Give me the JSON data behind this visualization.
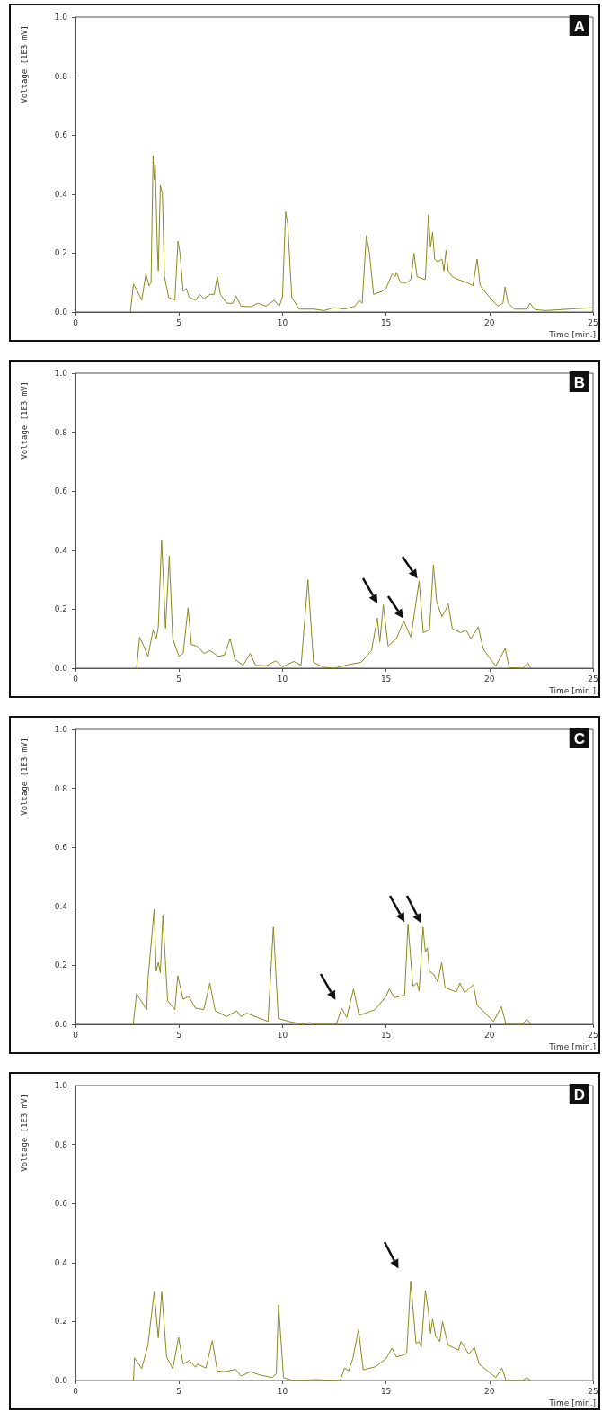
{
  "chart_data": [
    {
      "type": "line",
      "title": "A",
      "xlabel": "Time [min.]",
      "ylabel": "Voltage [1E3 mV]",
      "color": "#8a8a1e",
      "marker": "none",
      "xlim": [
        0,
        25
      ],
      "ylim": [
        0,
        1
      ],
      "xticks": [
        0,
        5,
        10,
        15,
        20,
        25
      ],
      "yticks": [
        {
          "value": 0,
          "label": "0.0"
        },
        {
          "value": 0.2,
          "label": "0.2"
        },
        {
          "value": 0.4,
          "label": "0.4"
        },
        {
          "value": 0.6,
          "label": "0.6"
        },
        {
          "value": 0.8,
          "label": "0.8"
        },
        {
          "value": 1,
          "label": "1.0"
        }
      ],
      "x": [
        2.65,
        2.8,
        3.0,
        3.2,
        3.4,
        3.55,
        3.65,
        3.75,
        3.8,
        3.85,
        3.95,
        4.0,
        4.1,
        4.2,
        4.3,
        4.5,
        4.8,
        4.95,
        5.05,
        5.2,
        5.35,
        5.5,
        5.8,
        6.0,
        6.2,
        6.5,
        6.7,
        6.85,
        7.0,
        7.3,
        7.6,
        7.75,
        8.0,
        8.5,
        8.8,
        9.2,
        9.6,
        9.85,
        10.0,
        10.15,
        10.25,
        10.45,
        10.8,
        11.5,
        12.0,
        12.5,
        13.0,
        13.5,
        13.7,
        13.85,
        14.05,
        14.2,
        14.4,
        14.8,
        15.0,
        15.3,
        15.45,
        15.5,
        15.7,
        16.0,
        16.2,
        16.35,
        16.5,
        16.9,
        17.05,
        17.15,
        17.25,
        17.35,
        17.5,
        17.7,
        17.8,
        17.9,
        18.0,
        18.2,
        18.5,
        18.9,
        19.2,
        19.4,
        19.55,
        20.0,
        20.4,
        20.65,
        20.75,
        20.9,
        21.2,
        21.8,
        21.95,
        22.2,
        22.7,
        25
      ],
      "values": [
        0,
        0.095,
        0.07,
        0.04,
        0.13,
        0.09,
        0.1,
        0.53,
        0.45,
        0.5,
        0.23,
        0.14,
        0.43,
        0.4,
        0.12,
        0.05,
        0.04,
        0.24,
        0.2,
        0.07,
        0.08,
        0.05,
        0.04,
        0.06,
        0.045,
        0.06,
        0.06,
        0.12,
        0.06,
        0.03,
        0.03,
        0.055,
        0.02,
        0.018,
        0.03,
        0.02,
        0.04,
        0.02,
        0.05,
        0.34,
        0.3,
        0.05,
        0.01,
        0.01,
        0.005,
        0.015,
        0.01,
        0.02,
        0.04,
        0.03,
        0.26,
        0.2,
        0.06,
        0.07,
        0.08,
        0.13,
        0.12,
        0.135,
        0.1,
        0.1,
        0.11,
        0.2,
        0.12,
        0.11,
        0.33,
        0.22,
        0.27,
        0.18,
        0.17,
        0.18,
        0.14,
        0.21,
        0.14,
        0.12,
        0.11,
        0.1,
        0.09,
        0.18,
        0.09,
        0.05,
        0.02,
        0.03,
        0.085,
        0.03,
        0.01,
        0.01,
        0.03,
        0.008,
        0.005,
        0.015
      ]
    },
    {
      "type": "line",
      "title": "B",
      "xlabel": "Time [min.]",
      "ylabel": "Voltage [1E3 mV]",
      "color": "#8a8a1e",
      "marker": "none",
      "xlim": [
        0,
        25
      ],
      "ylim": [
        0,
        1
      ],
      "xticks": [
        0,
        5,
        10,
        15,
        20,
        25
      ],
      "yticks": [
        {
          "value": 0,
          "label": "0.0"
        },
        {
          "value": 0.2,
          "label": "0.2"
        },
        {
          "value": 0.4,
          "label": "0.4"
        },
        {
          "value": 0.6,
          "label": "0.6"
        },
        {
          "value": 0.8,
          "label": "0.8"
        },
        {
          "value": 1,
          "label": "1.0"
        }
      ],
      "x": [
        2.95,
        3.1,
        3.3,
        3.5,
        3.75,
        3.9,
        4.0,
        4.16,
        4.35,
        4.53,
        4.7,
        5.0,
        5.2,
        5.44,
        5.6,
        5.88,
        6.2,
        6.5,
        6.9,
        7.2,
        7.47,
        7.7,
        8.1,
        8.44,
        8.7,
        9.2,
        9.68,
        10.0,
        10.55,
        10.9,
        11.23,
        11.5,
        12.0,
        12.5,
        13.18,
        13.8,
        14.3,
        14.58,
        14.7,
        14.87,
        15.1,
        15.5,
        15.86,
        16.2,
        16.6,
        16.8,
        17.1,
        17.29,
        17.45,
        17.7,
        17.9,
        18.0,
        18.2,
        18.6,
        18.86,
        19.1,
        19.46,
        19.7,
        20.3,
        20.76,
        20.95,
        21.6,
        21.85,
        22.0
      ],
      "values": [
        0,
        0.105,
        0.075,
        0.04,
        0.13,
        0.1,
        0.14,
        0.435,
        0.135,
        0.38,
        0.1,
        0.04,
        0.05,
        0.205,
        0.08,
        0.075,
        0.05,
        0.06,
        0.04,
        0.045,
        0.1,
        0.03,
        0.01,
        0.05,
        0.01,
        0.008,
        0.025,
        0.005,
        0.023,
        0.01,
        0.3,
        0.02,
        0.003,
        0,
        0.012,
        0.02,
        0.06,
        0.17,
        0.09,
        0.215,
        0.075,
        0.1,
        0.16,
        0.105,
        0.295,
        0.12,
        0.13,
        0.35,
        0.225,
        0.175,
        0.2,
        0.22,
        0.135,
        0.12,
        0.13,
        0.1,
        0.14,
        0.065,
        0.007,
        0.067,
        0.002,
        0,
        0.018,
        0
      ]
    },
    {
      "type": "line",
      "title": "C",
      "xlabel": "Time [min.]",
      "ylabel": "Voltage [1E3 mV]",
      "color": "#8a8a1e",
      "marker": "none",
      "xlim": [
        0,
        25
      ],
      "ylim": [
        0,
        1
      ],
      "xticks": [
        0,
        5,
        10,
        15,
        20,
        25
      ],
      "yticks": [
        {
          "value": 0,
          "label": "0.0"
        },
        {
          "value": 0.2,
          "label": "0.2"
        },
        {
          "value": 0.4,
          "label": "0.4"
        },
        {
          "value": 0.6,
          "label": "0.6"
        },
        {
          "value": 0.8,
          "label": "0.8"
        },
        {
          "value": 1,
          "label": "1.0"
        }
      ],
      "x": [
        2.79,
        2.95,
        3.1,
        3.44,
        3.5,
        3.8,
        3.9,
        4.0,
        4.1,
        4.22,
        4.45,
        4.8,
        4.94,
        5.2,
        5.47,
        5.8,
        6.2,
        6.49,
        6.75,
        7.3,
        7.78,
        8.0,
        8.28,
        8.8,
        9.3,
        9.56,
        9.8,
        10.3,
        11.0,
        11.3,
        11.7,
        12.6,
        12.86,
        13.1,
        13.43,
        13.7,
        14.48,
        15.0,
        15.16,
        15.4,
        15.9,
        16.06,
        16.3,
        16.5,
        16.6,
        16.79,
        16.9,
        17.0,
        17.1,
        17.3,
        17.5,
        17.69,
        17.85,
        18.4,
        18.57,
        18.8,
        19.22,
        19.4,
        20.2,
        20.57,
        20.8,
        21.6,
        21.8,
        22.0
      ],
      "values": [
        0,
        0.105,
        0.087,
        0.05,
        0.15,
        0.39,
        0.18,
        0.21,
        0.175,
        0.37,
        0.08,
        0.05,
        0.165,
        0.085,
        0.095,
        0.055,
        0.05,
        0.14,
        0.046,
        0.026,
        0.046,
        0.026,
        0.038,
        0.023,
        0.01,
        0.33,
        0.02,
        0.01,
        0,
        0.006,
        0,
        0,
        0.055,
        0.023,
        0.12,
        0.03,
        0.05,
        0.095,
        0.12,
        0.09,
        0.1,
        0.34,
        0.13,
        0.14,
        0.113,
        0.33,
        0.245,
        0.26,
        0.18,
        0.17,
        0.145,
        0.21,
        0.125,
        0.11,
        0.14,
        0.107,
        0.135,
        0.065,
        0.01,
        0.06,
        0,
        0,
        0.018,
        0
      ]
    },
    {
      "type": "line",
      "title": "D",
      "xlabel": "Time [min.]",
      "ylabel": "Voltage [1E3 mV]",
      "color": "#8a8a1e",
      "marker": "none",
      "xlim": [
        0,
        25
      ],
      "ylim": [
        0,
        1
      ],
      "xticks": [
        0,
        5,
        10,
        15,
        20,
        25
      ],
      "yticks": [
        {
          "value": 0,
          "label": "0.0"
        },
        {
          "value": 0.2,
          "label": "0.2"
        },
        {
          "value": 0.4,
          "label": "0.4"
        },
        {
          "value": 0.6,
          "label": "0.6"
        },
        {
          "value": 0.8,
          "label": "0.8"
        },
        {
          "value": 1,
          "label": "1.0"
        }
      ],
      "x": [
        2.8,
        2.85,
        3.2,
        3.5,
        3.8,
        4.0,
        4.17,
        4.4,
        4.7,
        4.98,
        5.2,
        5.5,
        5.8,
        5.9,
        6.3,
        6.61,
        6.85,
        7.2,
        7.74,
        8.0,
        8.45,
        8.9,
        9.5,
        9.7,
        9.81,
        10.05,
        10.5,
        11.6,
        12.78,
        13.0,
        13.2,
        13.4,
        13.67,
        13.9,
        14.5,
        15.0,
        15.29,
        15.5,
        16.0,
        16.19,
        16.45,
        16.6,
        16.7,
        16.9,
        17.05,
        17.15,
        17.25,
        17.4,
        17.6,
        17.73,
        18.0,
        18.5,
        18.62,
        19.0,
        19.27,
        19.5,
        20.3,
        20.6,
        20.8,
        21.6,
        21.8,
        22.0
      ],
      "values": [
        0,
        0.077,
        0.04,
        0.12,
        0.3,
        0.145,
        0.3,
        0.08,
        0.04,
        0.146,
        0.056,
        0.068,
        0.045,
        0.056,
        0.042,
        0.135,
        0.033,
        0.03,
        0.038,
        0.015,
        0.03,
        0.019,
        0.01,
        0.023,
        0.257,
        0.01,
        0,
        0.003,
        0,
        0.042,
        0.033,
        0.075,
        0.173,
        0.036,
        0.047,
        0.074,
        0.11,
        0.08,
        0.09,
        0.337,
        0.126,
        0.132,
        0.112,
        0.305,
        0.234,
        0.16,
        0.208,
        0.15,
        0.132,
        0.2,
        0.12,
        0.103,
        0.132,
        0.09,
        0.112,
        0.056,
        0.01,
        0.042,
        0,
        0,
        0.01,
        0
      ]
    }
  ]
}
